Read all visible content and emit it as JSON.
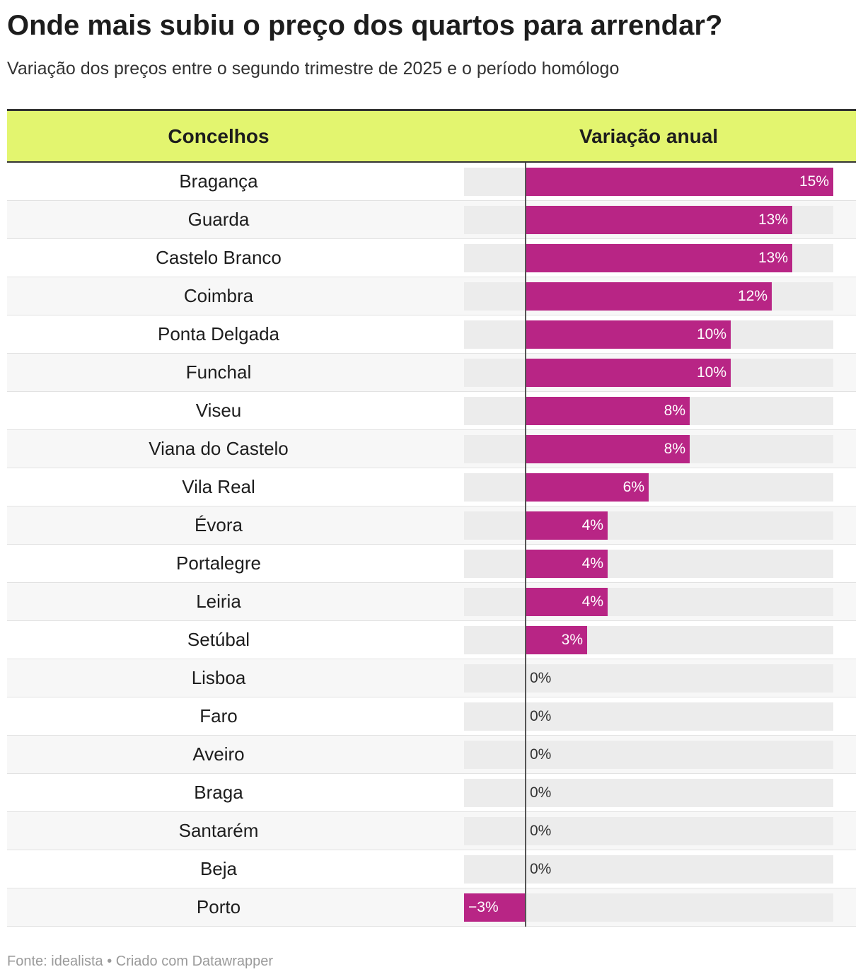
{
  "title": "Onde mais subiu o preço dos quartos para arrendar?",
  "subtitle": "Variação dos preços entre o segundo trimestre de 2025 e o período homólogo",
  "header": {
    "col_name": "Concelhos",
    "col_value": "Variação anual"
  },
  "footer": "Fonte: idealista • Criado com Datawrapper",
  "colors": {
    "bar": "#b82585",
    "header_bg": "#e3f56f",
    "track": "#ececec"
  },
  "chart_data": {
    "type": "bar",
    "orientation": "horizontal",
    "xlim": [
      -3,
      15
    ],
    "categories": [
      "Bragança",
      "Guarda",
      "Castelo Branco",
      "Coimbra",
      "Ponta Delgada",
      "Funchal",
      "Viseu",
      "Viana do Castelo",
      "Vila Real",
      "Évora",
      "Portalegre",
      "Leiria",
      "Setúbal",
      "Lisboa",
      "Faro",
      "Aveiro",
      "Braga",
      "Santarém",
      "Beja",
      "Porto"
    ],
    "values": [
      15,
      13,
      13,
      12,
      10,
      10,
      8,
      8,
      6,
      4,
      4,
      4,
      3,
      0,
      0,
      0,
      0,
      0,
      0,
      -3
    ],
    "value_labels": [
      "15%",
      "13%",
      "13%",
      "12%",
      "10%",
      "10%",
      "8%",
      "8%",
      "6%",
      "4%",
      "4%",
      "4%",
      "3%",
      "0%",
      "0%",
      "0%",
      "0%",
      "0%",
      "0%",
      "−3%"
    ]
  }
}
